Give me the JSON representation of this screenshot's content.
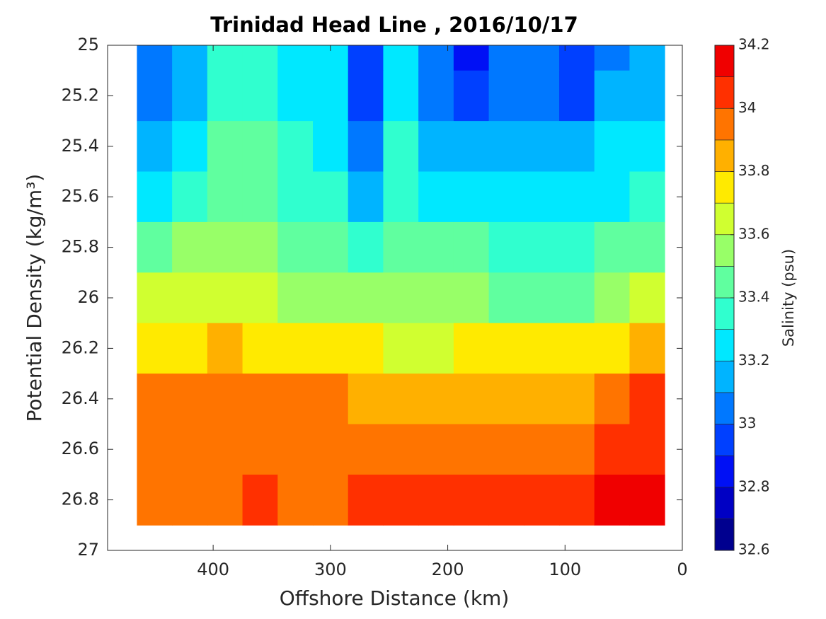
{
  "chart_data": {
    "type": "contour",
    "title": "Trinidad Head Line , 2016/10/17",
    "x_label": "Offshore Distance (km)",
    "y_label": "Potential Density (kg/m³)",
    "colorbar_label": "Salinity (psu)",
    "xlim": [
      490,
      0
    ],
    "xticks": [
      400,
      300,
      200,
      100,
      0
    ],
    "ylim": [
      25,
      27
    ],
    "yticks": [
      25,
      25.2,
      25.4,
      25.6,
      25.8,
      26,
      26.2,
      26.4,
      26.6,
      26.8,
      27
    ],
    "reverse_y": true,
    "x": [
      450,
      420,
      390,
      360,
      330,
      300,
      270,
      240,
      210,
      180,
      150,
      120,
      90,
      60,
      30
    ],
    "y": [
      25,
      25.2,
      25.4,
      25.6,
      25.8,
      26,
      26.2,
      26.4,
      26.6,
      26.8
    ],
    "z": [
      [
        33.05,
        33.15,
        33.35,
        33.35,
        33.25,
        33.25,
        32.95,
        33.25,
        33.05,
        32.85,
        33.0,
        33.0,
        32.9,
        33.05,
        33.1
      ],
      [
        33.05,
        33.15,
        33.35,
        33.35,
        33.25,
        33.25,
        32.95,
        33.25,
        33.05,
        32.95,
        33.05,
        33.0,
        32.95,
        33.15,
        33.15
      ],
      [
        33.15,
        33.2,
        33.45,
        33.4,
        33.3,
        33.25,
        33.05,
        33.3,
        33.15,
        33.1,
        33.15,
        33.1,
        33.1,
        33.2,
        33.2
      ],
      [
        33.25,
        33.3,
        33.45,
        33.45,
        33.35,
        33.3,
        33.15,
        33.35,
        33.25,
        33.25,
        33.25,
        33.2,
        33.2,
        33.25,
        33.3
      ],
      [
        33.45,
        33.5,
        33.55,
        33.5,
        33.45,
        33.4,
        33.35,
        33.4,
        33.4,
        33.4,
        33.35,
        33.35,
        33.35,
        33.4,
        33.45
      ],
      [
        33.6,
        33.6,
        33.65,
        33.6,
        33.55,
        33.55,
        33.5,
        33.5,
        33.5,
        33.5,
        33.45,
        33.45,
        33.45,
        33.55,
        33.6
      ],
      [
        33.75,
        33.75,
        33.8,
        33.75,
        33.75,
        33.7,
        33.7,
        33.65,
        33.65,
        33.7,
        33.7,
        33.7,
        33.7,
        33.75,
        33.85
      ],
      [
        33.95,
        33.9,
        33.95,
        33.95,
        33.95,
        33.9,
        33.85,
        33.85,
        33.85,
        33.85,
        33.85,
        33.85,
        33.85,
        33.9,
        34.0
      ],
      [
        33.95,
        33.95,
        33.95,
        33.95,
        33.95,
        33.95,
        33.95,
        33.95,
        33.95,
        33.95,
        33.95,
        33.95,
        33.95,
        34.05,
        34.05
      ],
      [
        33.95,
        33.95,
        33.95,
        34.0,
        33.95,
        33.95,
        34.0,
        34.0,
        34.05,
        34.0,
        34.0,
        34.0,
        34.0,
        34.1,
        34.15
      ]
    ],
    "levels": [
      32.6,
      32.7,
      32.8,
      32.9,
      33.0,
      33.1,
      33.2,
      33.3,
      33.4,
      33.5,
      33.6,
      33.7,
      33.8,
      33.9,
      34.0,
      34.1,
      34.2
    ],
    "colors": [
      "#00008f",
      "#0000c4",
      "#0010f5",
      "#0040ff",
      "#0078ff",
      "#00b4ff",
      "#00e8ff",
      "#30ffcf",
      "#60ff9f",
      "#98ff68",
      "#d0ff30",
      "#ffea00",
      "#ffb000",
      "#ff7400",
      "#ff3000",
      "#f00000",
      "#a80000"
    ],
    "cticks": [
      32.6,
      32.8,
      33,
      33.2,
      33.4,
      33.6,
      33.8,
      34,
      34.2
    ]
  }
}
